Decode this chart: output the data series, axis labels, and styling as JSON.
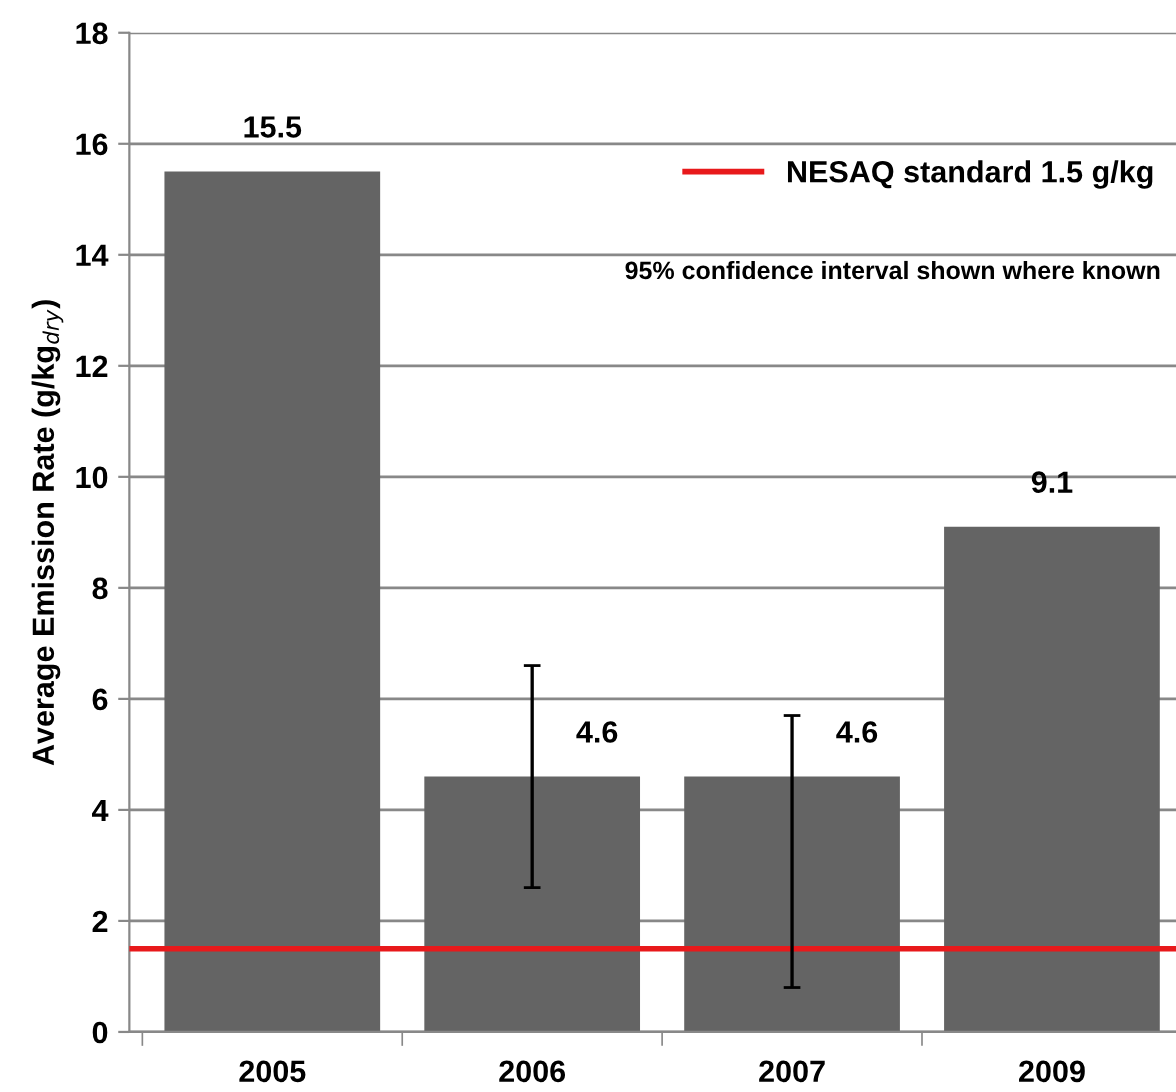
{
  "chart_data": {
    "type": "bar",
    "ylabel": "Average Emission Rate (g/kg$_{dry}$)",
    "categories": [
      "2005",
      "2006",
      "2007",
      "2009"
    ],
    "series": [
      {
        "color": "#646464",
        "values": [
          15.5,
          4.6,
          4.6,
          9.1
        ],
        "errors": [
          null,
          [
            2.6,
            6.6
          ],
          [
            0.8,
            5.7
          ],
          null
        ]
      }
    ],
    "data_labels": true,
    "ylim": [
      0,
      18
    ],
    "yticks": [
      0,
      2,
      4,
      6,
      8,
      10,
      12,
      14,
      16,
      18
    ],
    "grid": "y",
    "ref_lines": [
      {
        "axis": "y",
        "value": 1.5,
        "label": "NESAQ standard 1.5 g/kg",
        "color": "#e8191b"
      }
    ],
    "legend": "top right",
    "annotations": [
      "95% confidence interval shown where known"
    ]
  }
}
